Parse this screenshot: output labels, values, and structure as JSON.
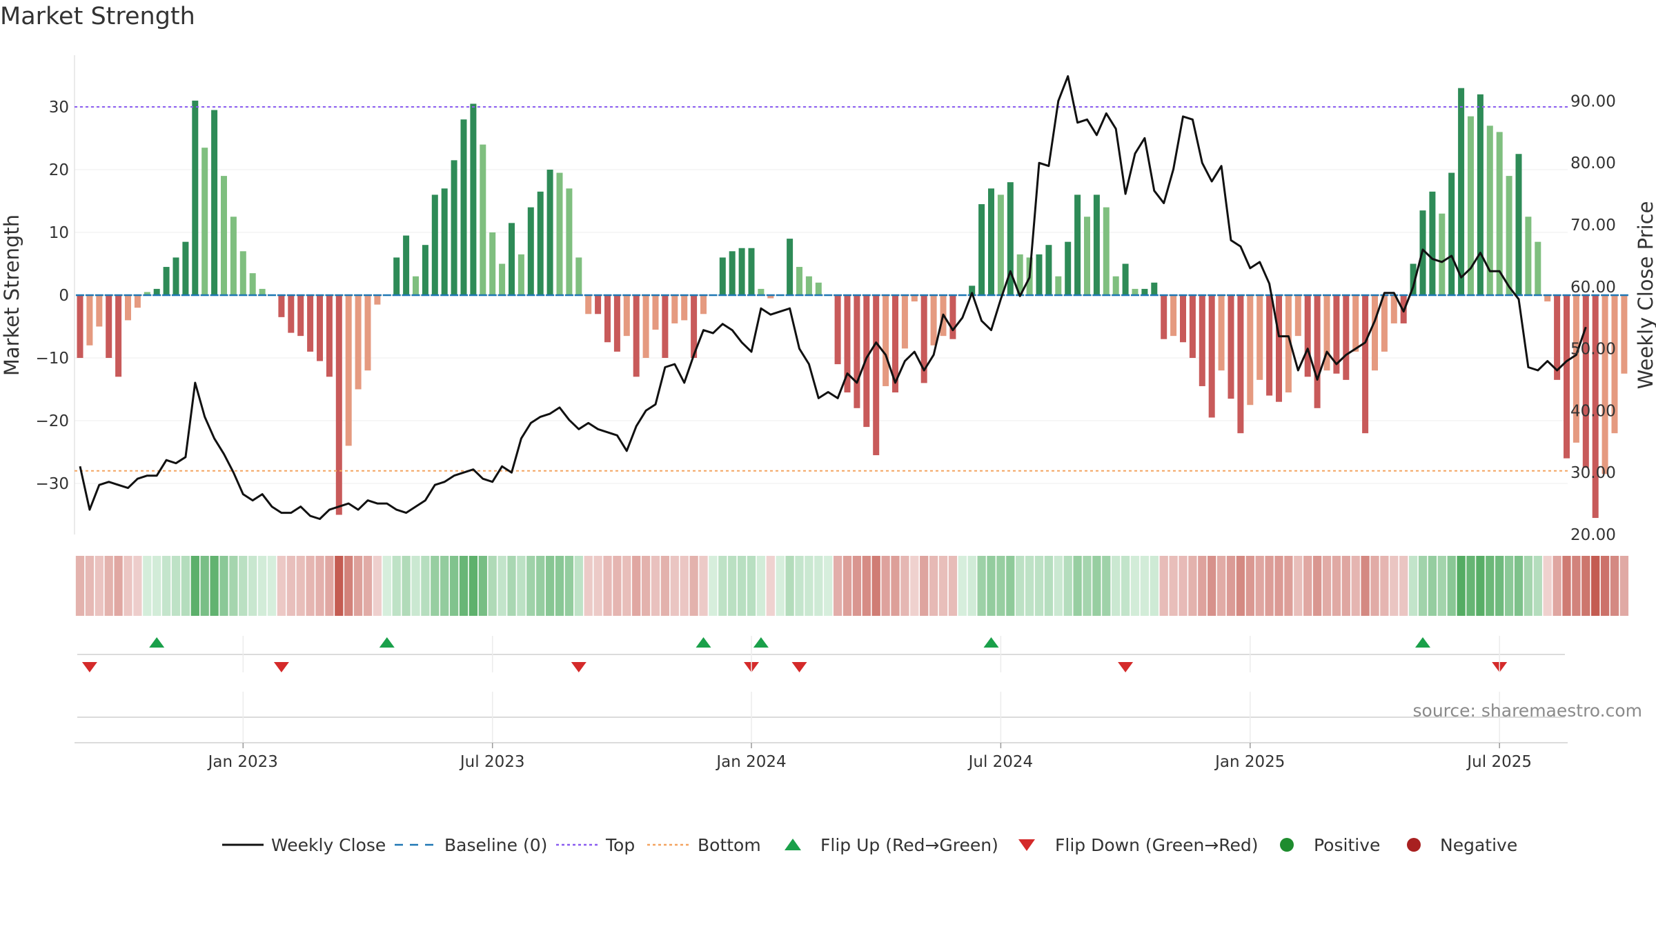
{
  "chart_data": {
    "type": "bar",
    "title": "Market Strength",
    "ylabel_left": "Market Strength",
    "ylabel_right": "Weekly Close Price",
    "source": "source: sharemaestro.com",
    "ylim_left": [
      -38,
      38
    ],
    "ylim_right": [
      20,
      96
    ],
    "top_line": 30,
    "bottom_line": -28,
    "left_ticks": [
      {
        "value": 30,
        "label": "30"
      },
      {
        "value": 20,
        "label": "20"
      },
      {
        "value": 10,
        "label": "10"
      },
      {
        "value": 0,
        "label": "0"
      },
      {
        "value": -10,
        "label": "−10"
      },
      {
        "value": -20,
        "label": "−20"
      },
      {
        "value": -30,
        "label": "−30"
      }
    ],
    "right_ticks": [
      {
        "value": 90,
        "label": "90.00"
      },
      {
        "value": 80,
        "label": "80.00"
      },
      {
        "value": 70,
        "label": "70.00"
      },
      {
        "value": 60,
        "label": "60.00"
      },
      {
        "value": 50,
        "label": "50.00"
      },
      {
        "value": 40,
        "label": "40.00"
      },
      {
        "value": 30,
        "label": "30.00"
      },
      {
        "value": 20,
        "label": "20.00"
      }
    ],
    "x_ticks": [
      {
        "week": 17,
        "label": "Jan 2023"
      },
      {
        "week": 43,
        "label": "Jul 2023"
      },
      {
        "week": 70,
        "label": "Jan 2024"
      },
      {
        "week": 96,
        "label": "Jul 2024"
      },
      {
        "week": 122,
        "label": "Jan 2025"
      },
      {
        "week": 148,
        "label": "Jul 2025"
      }
    ],
    "strength": [
      -10,
      -8,
      -5,
      -10,
      -13,
      -4,
      -2,
      0.5,
      1,
      4.5,
      6,
      8.5,
      31,
      23.5,
      29.5,
      19,
      12.5,
      7,
      3.5,
      1,
      0,
      -3.5,
      -6,
      -6.5,
      -9,
      -10.5,
      -13,
      -35,
      -24,
      -15,
      -12,
      -1.5,
      0,
      6,
      9.5,
      3,
      8,
      16,
      17,
      21.5,
      28,
      30.5,
      24,
      10,
      5,
      11.5,
      6.5,
      14,
      16.5,
      20,
      19.5,
      17,
      6,
      -3,
      -3,
      -7.5,
      -9,
      -6.5,
      -13,
      -10,
      -5.5,
      -10,
      -4.5,
      -4,
      -10,
      -3,
      0,
      6,
      7,
      7.5,
      7.5,
      1,
      -0.5,
      0,
      9,
      4.5,
      3,
      2,
      0,
      -11,
      -15.5,
      -18,
      -21,
      -25.5,
      -14.5,
      -15.5,
      -8.5,
      -1,
      -14,
      -8,
      -6.5,
      -7,
      0,
      1.5,
      14.5,
      17,
      16,
      18,
      6.5,
      6,
      6.5,
      8,
      3,
      8.5,
      16,
      12.5,
      16,
      14,
      3,
      5,
      1,
      1,
      2,
      -7,
      -6.5,
      -7.5,
      -10,
      -14.5,
      -19.5,
      -12,
      -16.5,
      -22,
      -17.5,
      -13.5,
      -16,
      -17,
      -15.5,
      -6.5,
      -13,
      -18,
      -12,
      -12.5,
      -13.5,
      -9,
      -22,
      -12,
      -9,
      -4.5,
      -4.5,
      5,
      13.5,
      16.5,
      13,
      19.5,
      33,
      28.5,
      32,
      27,
      26,
      19,
      22.5,
      12.5,
      8.5,
      -1,
      -13.5,
      -26,
      -23.5,
      -27.5,
      -35.5,
      -28.5,
      -22,
      -12.5
    ],
    "price": [
      31,
      24,
      28,
      28.5,
      28,
      27.5,
      29,
      29.5,
      29.5,
      32,
      31.5,
      32.5,
      44.5,
      39,
      35.5,
      33,
      30,
      26.5,
      25.5,
      26.5,
      24.5,
      23.5,
      23.5,
      24.5,
      23,
      22.5,
      24,
      24.5,
      25,
      24,
      25.5,
      25,
      25,
      24,
      23.5,
      24.5,
      25.5,
      28,
      28.5,
      29.5,
      30,
      30.5,
      29,
      28.5,
      31,
      30,
      35.5,
      38,
      39,
      39.5,
      40.5,
      38.5,
      37,
      38,
      37,
      36.5,
      36,
      33.5,
      37.5,
      40,
      41,
      47,
      47.5,
      44.5,
      49,
      53,
      52.5,
      54,
      53,
      51,
      49.5,
      56.5,
      55.5,
      56,
      56.5,
      50,
      47.5,
      42,
      43,
      42,
      46,
      44.5,
      48.5,
      51,
      49,
      44.5,
      48,
      49.5,
      46.5,
      49,
      55.5,
      53,
      55,
      59,
      54.5,
      53,
      58,
      62.5,
      58.5,
      61.5,
      80,
      79.5,
      90,
      94,
      86.5,
      87,
      84.5,
      88,
      85.5,
      75,
      81.5,
      84,
      75.5,
      73.5,
      79,
      87.5,
      87,
      80,
      77,
      79.5,
      67.5,
      66.5,
      63,
      64,
      60.5,
      52,
      52,
      46.5,
      50,
      45,
      49.5,
      47.5,
      49,
      50,
      51,
      54.5,
      59,
      59,
      56,
      60,
      66,
      64.5,
      64,
      65,
      61.5,
      63,
      65.5,
      62.5,
      62.5,
      60,
      58,
      47,
      46.5,
      48,
      46.5,
      48,
      49,
      53.5
    ]
  },
  "heat_strip": {
    "label": "Market Strength heat strip"
  },
  "flips": {
    "up_weeks": [
      8,
      32,
      65,
      71,
      95,
      140
    ],
    "down_weeks": [
      1,
      21,
      52,
      70,
      75,
      109,
      148
    ]
  },
  "legend": [
    {
      "key": "weekly-close",
      "label": "Weekly Close"
    },
    {
      "key": "baseline",
      "label": "Baseline (0)"
    },
    {
      "key": "top",
      "label": "Top"
    },
    {
      "key": "bottom",
      "label": "Bottom"
    },
    {
      "key": "flip-up",
      "label": "Flip Up (Red→Green)"
    },
    {
      "key": "flip-down",
      "label": "Flip Down (Green→Red)"
    },
    {
      "key": "positive",
      "label": "Positive"
    },
    {
      "key": "negative",
      "label": "Negative"
    }
  ],
  "colors": {
    "pos_strong": "#2e8b57",
    "pos_light": "#7fbf7f",
    "neg_strong": "#c85a5a",
    "neg_light": "#e59a80",
    "price_line": "#111111",
    "baseline": "#1f77b4",
    "top": "#8a5cf0",
    "bottom": "#f4a460",
    "flip_up": "#1aa04a",
    "flip_down": "#d42a2a",
    "positive_dot": "#1e8c2e",
    "negative_dot": "#a82020"
  }
}
